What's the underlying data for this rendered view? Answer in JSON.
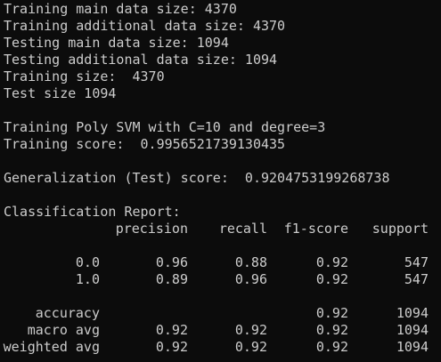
{
  "lines": [
    "Training main data size: 4370",
    "Training additional data size: 4370",
    "Testing main data size: 1094",
    "Testing additional data size: 1094",
    "Training size:  4370",
    "Test size 1094",
    "Training Poly SVM with C=10 and degree=3",
    "Training score:  0.9956521739130435",
    "Generalization (Test) score:  0.9204753199268738",
    "Classification Report:"
  ],
  "report": {
    "columns": [
      "precision",
      "recall",
      "f1-score",
      "support"
    ],
    "rows": [
      {
        "label": "0.0",
        "cells": [
          "0.96",
          "0.88",
          "0.92",
          "547"
        ]
      },
      {
        "label": "1.0",
        "cells": [
          "0.89",
          "0.96",
          "0.92",
          "547"
        ]
      },
      {
        "label": "accuracy",
        "cells": [
          null,
          null,
          "0.92",
          "1094"
        ]
      },
      {
        "label": "macro avg",
        "cells": [
          "0.92",
          "0.92",
          "0.92",
          "1094"
        ]
      },
      {
        "label": "weighted avg",
        "cells": [
          "0.92",
          "0.92",
          "0.92",
          "1094"
        ]
      }
    ]
  }
}
